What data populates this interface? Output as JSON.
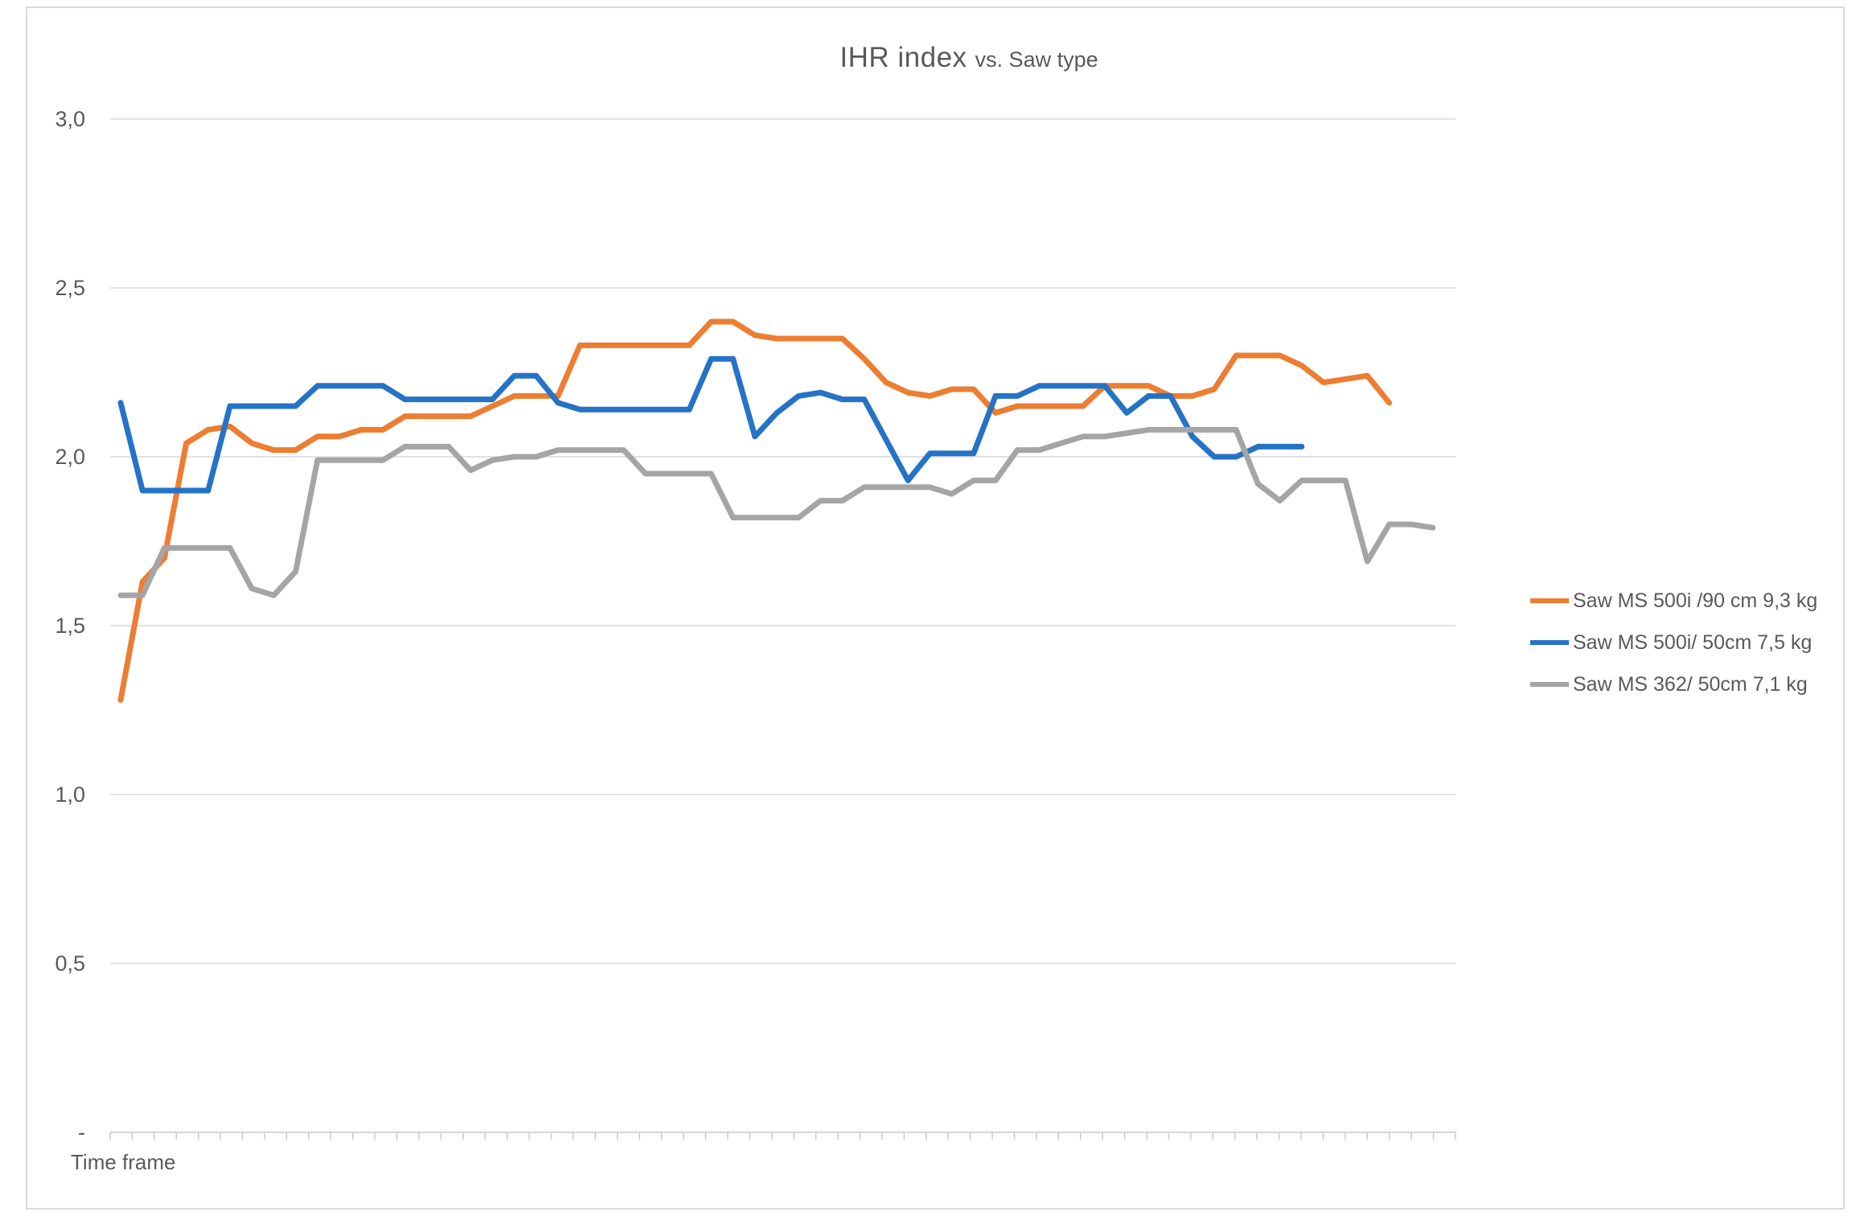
{
  "title": {
    "main": "IHR index",
    "suffix": "vs. Saw type"
  },
  "x_axis": {
    "label": "Time frame",
    "tick_count": 62,
    "category_labels_visible": false
  },
  "y_axis": {
    "ticks": [
      {
        "value": 3.0,
        "label": "3,0"
      },
      {
        "value": 2.5,
        "label": "2,5"
      },
      {
        "value": 2.0,
        "label": "2,0"
      },
      {
        "value": 1.5,
        "label": "1,5"
      },
      {
        "value": 1.0,
        "label": "1,0"
      },
      {
        "value": 0.5,
        "label": "0,5"
      },
      {
        "value": 0.0,
        "label": "-"
      }
    ]
  },
  "colors": {
    "series_orange": "#ED7D31",
    "series_blue": "#2573C6",
    "series_gray": "#A5A5A5",
    "gridline": "#D9D9D9",
    "axis_line": "#C9C9C9",
    "text": "#595959",
    "frame_border": "#DADADA"
  },
  "chart_data": {
    "type": "line",
    "title": "IHR index vs. Saw type",
    "xlabel": "Time frame",
    "ylabel": "IHR index",
    "ylim": [
      0,
      3.0
    ],
    "y_tick_step": 0.5,
    "grid": true,
    "legend_position": "right",
    "x_description": "Sequential unlabeled time frames (tick marks only); series start at frame 1",
    "series": [
      {
        "name": "Saw MS 500i /90 cm 9,3 kg",
        "color": "#ED7D31",
        "values": [
          1.28,
          1.63,
          1.7,
          2.04,
          2.08,
          2.09,
          2.04,
          2.02,
          2.02,
          2.06,
          2.06,
          2.08,
          2.08,
          2.12,
          2.12,
          2.12,
          2.12,
          2.15,
          2.18,
          2.18,
          2.18,
          2.33,
          2.33,
          2.33,
          2.33,
          2.33,
          2.33,
          2.4,
          2.4,
          2.36,
          2.35,
          2.35,
          2.35,
          2.35,
          2.29,
          2.22,
          2.19,
          2.18,
          2.2,
          2.2,
          2.13,
          2.15,
          2.15,
          2.15,
          2.15,
          2.21,
          2.21,
          2.21,
          2.18,
          2.18,
          2.2,
          2.3,
          2.3,
          2.3,
          2.27,
          2.22,
          2.23,
          2.24,
          2.16
        ]
      },
      {
        "name": "Saw MS 500i/ 50cm 7,5 kg",
        "color": "#2573C6",
        "values": [
          2.16,
          1.9,
          1.9,
          1.9,
          1.9,
          2.15,
          2.15,
          2.15,
          2.15,
          2.21,
          2.21,
          2.21,
          2.21,
          2.17,
          2.17,
          2.17,
          2.17,
          2.17,
          2.24,
          2.24,
          2.16,
          2.14,
          2.14,
          2.14,
          2.14,
          2.14,
          2.14,
          2.29,
          2.29,
          2.06,
          2.13,
          2.18,
          2.19,
          2.17,
          2.17,
          2.05,
          1.93,
          2.01,
          2.01,
          2.01,
          2.18,
          2.18,
          2.21,
          2.21,
          2.21,
          2.21,
          2.13,
          2.18,
          2.18,
          2.06,
          2.0,
          2.0,
          2.03,
          2.03,
          2.03
        ]
      },
      {
        "name": "Saw MS 362/ 50cm 7,1 kg",
        "color": "#A5A5A5",
        "values": [
          1.59,
          1.59,
          1.73,
          1.73,
          1.73,
          1.73,
          1.61,
          1.59,
          1.66,
          1.99,
          1.99,
          1.99,
          1.99,
          2.03,
          2.03,
          2.03,
          1.96,
          1.99,
          2.0,
          2.0,
          2.02,
          2.02,
          2.02,
          2.02,
          1.95,
          1.95,
          1.95,
          1.95,
          1.82,
          1.82,
          1.82,
          1.82,
          1.87,
          1.87,
          1.91,
          1.91,
          1.91,
          1.91,
          1.89,
          1.93,
          1.93,
          2.02,
          2.02,
          2.04,
          2.06,
          2.06,
          2.07,
          2.08,
          2.08,
          2.08,
          2.08,
          2.08,
          1.92,
          1.87,
          1.93,
          1.93,
          1.93,
          1.69,
          1.8,
          1.8,
          1.79
        ]
      }
    ]
  }
}
